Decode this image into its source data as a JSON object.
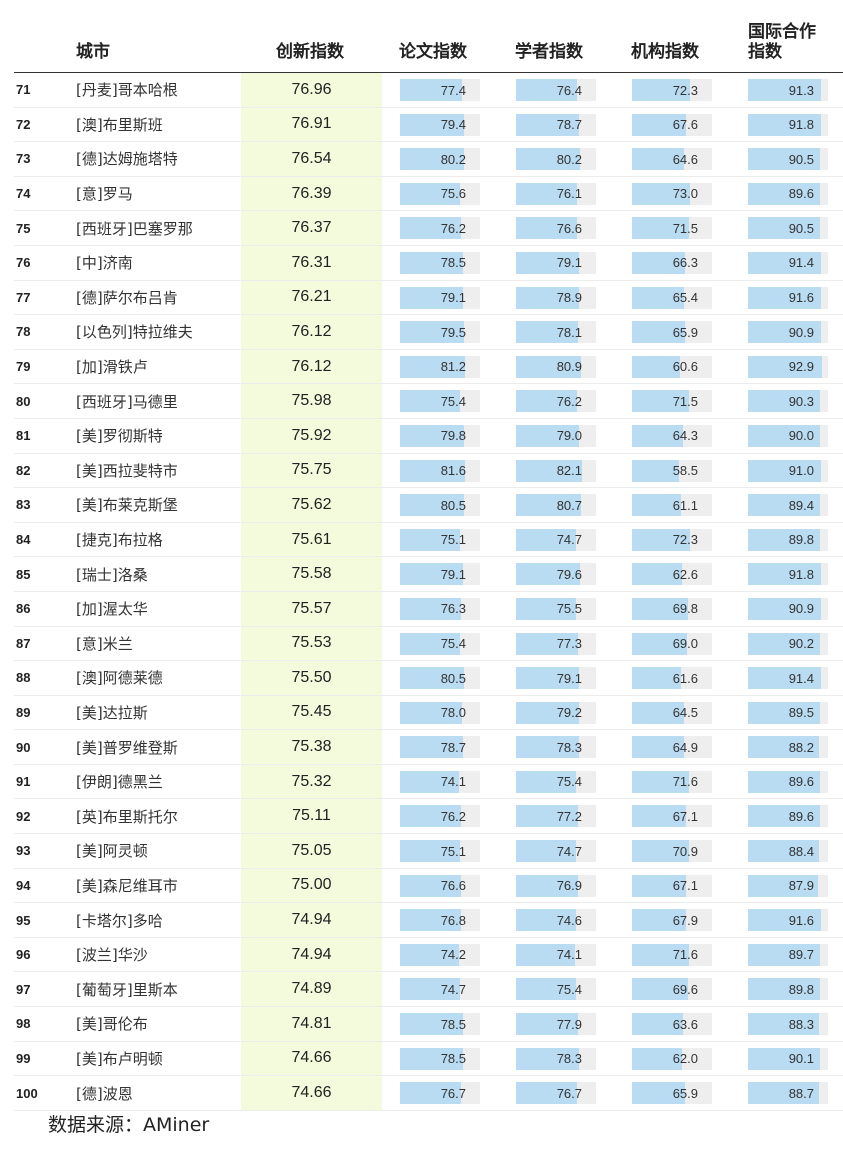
{
  "header": {
    "city": "城市",
    "score": "创新指数",
    "paper": "论文指数",
    "scholar": "学者指数",
    "institution": "机构指数",
    "international": "国际合作指数"
  },
  "colors": {
    "score_bg": "#f3fbdc",
    "bar_fill": "#b9dcf3",
    "bar_track": "#eeeeee"
  },
  "bar_scale_max": 100,
  "rows": [
    {
      "rank": "71",
      "city": "[丹麦]哥本哈根",
      "score": "76.96",
      "paper": "77.4",
      "scholar": "76.4",
      "institution": "72.3",
      "international": "91.3"
    },
    {
      "rank": "72",
      "city": "[澳]布里斯班",
      "score": "76.91",
      "paper": "79.4",
      "scholar": "78.7",
      "institution": "67.6",
      "international": "91.8"
    },
    {
      "rank": "73",
      "city": "[德]达姆施塔特",
      "score": "76.54",
      "paper": "80.2",
      "scholar": "80.2",
      "institution": "64.6",
      "international": "90.5"
    },
    {
      "rank": "74",
      "city": "[意]罗马",
      "score": "76.39",
      "paper": "75.6",
      "scholar": "76.1",
      "institution": "73.0",
      "international": "89.6"
    },
    {
      "rank": "75",
      "city": "[西班牙]巴塞罗那",
      "score": "76.37",
      "paper": "76.2",
      "scholar": "76.6",
      "institution": "71.5",
      "international": "90.5"
    },
    {
      "rank": "76",
      "city": "[中]济南",
      "score": "76.31",
      "paper": "78.5",
      "scholar": "79.1",
      "institution": "66.3",
      "international": "91.4"
    },
    {
      "rank": "77",
      "city": "[德]萨尔布吕肯",
      "score": "76.21",
      "paper": "79.1",
      "scholar": "78.9",
      "institution": "65.4",
      "international": "91.6"
    },
    {
      "rank": "78",
      "city": "[以色列]特拉维夫",
      "score": "76.12",
      "paper": "79.5",
      "scholar": "78.1",
      "institution": "65.9",
      "international": "90.9"
    },
    {
      "rank": "79",
      "city": "[加]滑铁卢",
      "score": "76.12",
      "paper": "81.2",
      "scholar": "80.9",
      "institution": "60.6",
      "international": "92.9"
    },
    {
      "rank": "80",
      "city": "[西班牙]马德里",
      "score": "75.98",
      "paper": "75.4",
      "scholar": "76.2",
      "institution": "71.5",
      "international": "90.3"
    },
    {
      "rank": "81",
      "city": "[美]罗彻斯特",
      "score": "75.92",
      "paper": "79.8",
      "scholar": "79.0",
      "institution": "64.3",
      "international": "90.0"
    },
    {
      "rank": "82",
      "city": "[美]西拉斐特市",
      "score": "75.75",
      "paper": "81.6",
      "scholar": "82.1",
      "institution": "58.5",
      "international": "91.0"
    },
    {
      "rank": "83",
      "city": "[美]布莱克斯堡",
      "score": "75.62",
      "paper": "80.5",
      "scholar": "80.7",
      "institution": "61.1",
      "international": "89.4"
    },
    {
      "rank": "84",
      "city": "[捷克]布拉格",
      "score": "75.61",
      "paper": "75.1",
      "scholar": "74.7",
      "institution": "72.3",
      "international": "89.8"
    },
    {
      "rank": "85",
      "city": "[瑞士]洛桑",
      "score": "75.58",
      "paper": "79.1",
      "scholar": "79.6",
      "institution": "62.6",
      "international": "91.8"
    },
    {
      "rank": "86",
      "city": "[加]渥太华",
      "score": "75.57",
      "paper": "76.3",
      "scholar": "75.5",
      "institution": "69.8",
      "international": "90.9"
    },
    {
      "rank": "87",
      "city": "[意]米兰",
      "score": "75.53",
      "paper": "75.4",
      "scholar": "77.3",
      "institution": "69.0",
      "international": "90.2"
    },
    {
      "rank": "88",
      "city": "[澳]阿德莱德",
      "score": "75.50",
      "paper": "80.5",
      "scholar": "79.1",
      "institution": "61.6",
      "international": "91.4"
    },
    {
      "rank": "89",
      "city": "[美]达拉斯",
      "score": "75.45",
      "paper": "78.0",
      "scholar": "79.2",
      "institution": "64.5",
      "international": "89.5"
    },
    {
      "rank": "90",
      "city": "[美]普罗维登斯",
      "score": "75.38",
      "paper": "78.7",
      "scholar": "78.3",
      "institution": "64.9",
      "international": "88.2"
    },
    {
      "rank": "91",
      "city": "[伊朗]德黑兰",
      "score": "75.32",
      "paper": "74.1",
      "scholar": "75.4",
      "institution": "71.6",
      "international": "89.6"
    },
    {
      "rank": "92",
      "city": "[英]布里斯托尔",
      "score": "75.11",
      "paper": "76.2",
      "scholar": "77.2",
      "institution": "67.1",
      "international": "89.6"
    },
    {
      "rank": "93",
      "city": "[美]阿灵顿",
      "score": "75.05",
      "paper": "75.1",
      "scholar": "74.7",
      "institution": "70.9",
      "international": "88.4"
    },
    {
      "rank": "94",
      "city": "[美]森尼维耳市",
      "score": "75.00",
      "paper": "76.6",
      "scholar": "76.9",
      "institution": "67.1",
      "international": "87.9"
    },
    {
      "rank": "95",
      "city": "[卡塔尔]多哈",
      "score": "74.94",
      "paper": "76.8",
      "scholar": "74.6",
      "institution": "67.9",
      "international": "91.6"
    },
    {
      "rank": "96",
      "city": "[波兰]华沙",
      "score": "74.94",
      "paper": "74.2",
      "scholar": "74.1",
      "institution": "71.6",
      "international": "89.7"
    },
    {
      "rank": "97",
      "city": "[葡萄牙]里斯本",
      "score": "74.89",
      "paper": "74.7",
      "scholar": "75.4",
      "institution": "69.6",
      "international": "89.8"
    },
    {
      "rank": "98",
      "city": "[美]哥伦布",
      "score": "74.81",
      "paper": "78.5",
      "scholar": "77.9",
      "institution": "63.6",
      "international": "88.3"
    },
    {
      "rank": "99",
      "city": "[美]布卢明顿",
      "score": "74.66",
      "paper": "78.5",
      "scholar": "78.3",
      "institution": "62.0",
      "international": "90.1"
    },
    {
      "rank": "100",
      "city": "[德]波恩",
      "score": "74.66",
      "paper": "76.7",
      "scholar": "76.7",
      "institution": "65.9",
      "international": "88.7"
    }
  ],
  "source": "数据来源：AMiner"
}
